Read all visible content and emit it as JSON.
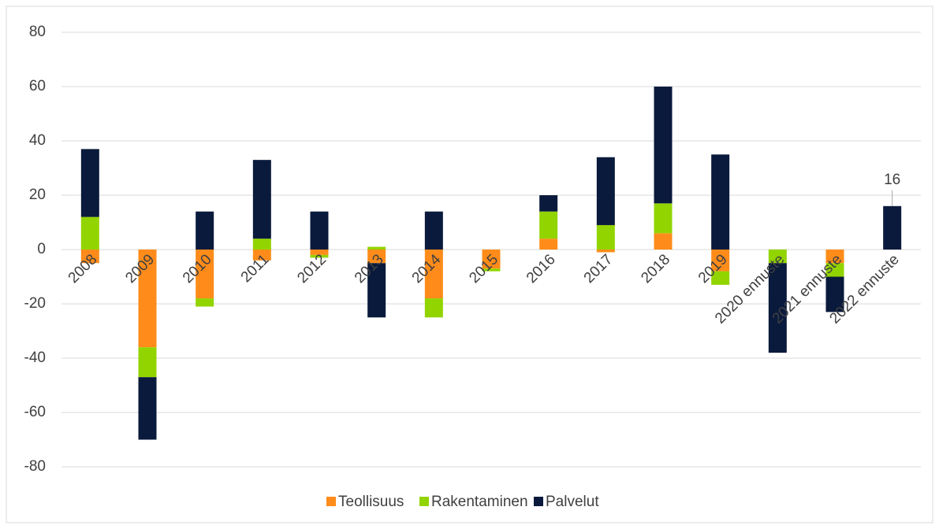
{
  "chart_data": {
    "type": "bar",
    "stacked": true,
    "categories": [
      "2008",
      "2009",
      "2010",
      "2011",
      "2012",
      "2013",
      "2014",
      "2015",
      "2016",
      "2017",
      "2018",
      "2019",
      "2020 ennuste",
      "2021 ennuste",
      "2022 ennuste"
    ],
    "series": [
      {
        "name": "Teollisuus",
        "color": "#ff8c1a",
        "values": [
          -5,
          -36,
          -18,
          -4,
          -2,
          -5,
          -18,
          -7,
          4,
          -1,
          6,
          -8,
          0,
          -5,
          0
        ]
      },
      {
        "name": "Rakentaminen",
        "color": "#92d400",
        "values": [
          12,
          -11,
          -3,
          4,
          -1,
          1,
          -7,
          -1,
          10,
          9,
          11,
          -5,
          -5,
          -5,
          0
        ]
      },
      {
        "name": "Palvelut",
        "color": "#0a1a3c",
        "values": [
          25,
          -23,
          14,
          29,
          14,
          -20,
          14,
          0,
          6,
          25,
          43,
          35,
          -33,
          -13,
          16
        ],
        "labeled": [
          false,
          false,
          false,
          false,
          false,
          false,
          false,
          false,
          false,
          false,
          false,
          false,
          false,
          false,
          true
        ]
      }
    ],
    "ylim": [
      -80,
      80
    ],
    "yticks": [
      -80,
      -60,
      -40,
      -20,
      0,
      20,
      40,
      60,
      80
    ],
    "grid": true,
    "legend": "bottom"
  }
}
